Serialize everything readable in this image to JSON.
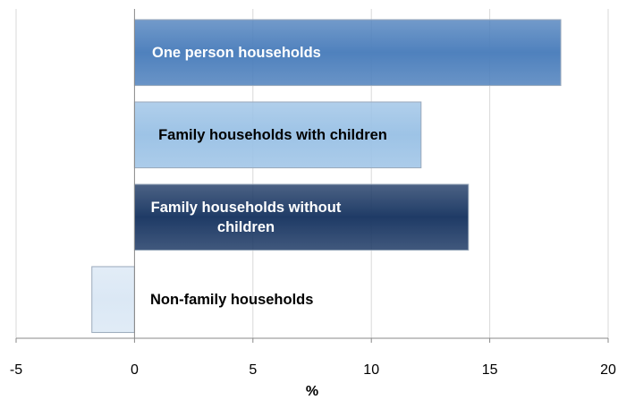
{
  "chart_data": {
    "type": "bar",
    "orientation": "horizontal",
    "x_label": "%",
    "categories": [
      "One person households",
      "Family households with children",
      "Family households without children",
      "Non-family households"
    ],
    "values": [
      18.0,
      12.1,
      14.1,
      -1.8
    ],
    "colors": [
      "#4f81bd",
      "#9dc3e6",
      "#1f3b66",
      "#dbe8f5"
    ],
    "xlim": [
      -5,
      20
    ],
    "xticks": [
      -5,
      0,
      5,
      10,
      15,
      20
    ],
    "grid": true
  }
}
